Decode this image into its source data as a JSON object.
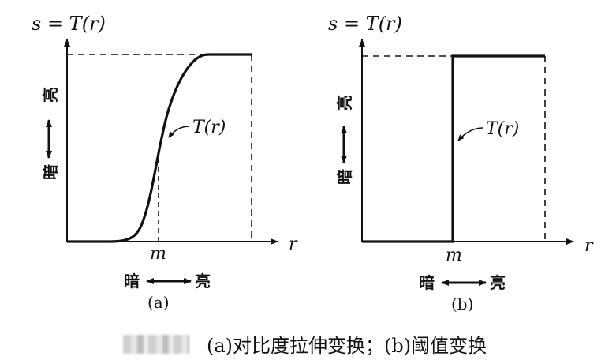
{
  "panel_a": {
    "y_label": "s = T(r)",
    "x_label": "r",
    "curve_label": "T(r)",
    "m_label": "m",
    "axis_dark": "暗",
    "axis_bright": "亮",
    "sub_caption": "(a)"
  },
  "panel_b": {
    "y_label": "s = T(r)",
    "x_label": "r",
    "curve_label": "T(r)",
    "m_label": "m",
    "axis_dark": "暗",
    "axis_bright": "亮",
    "sub_caption": "(b)"
  },
  "caption": "(a)对比度拉伸变换；(b)阈值变换"
}
